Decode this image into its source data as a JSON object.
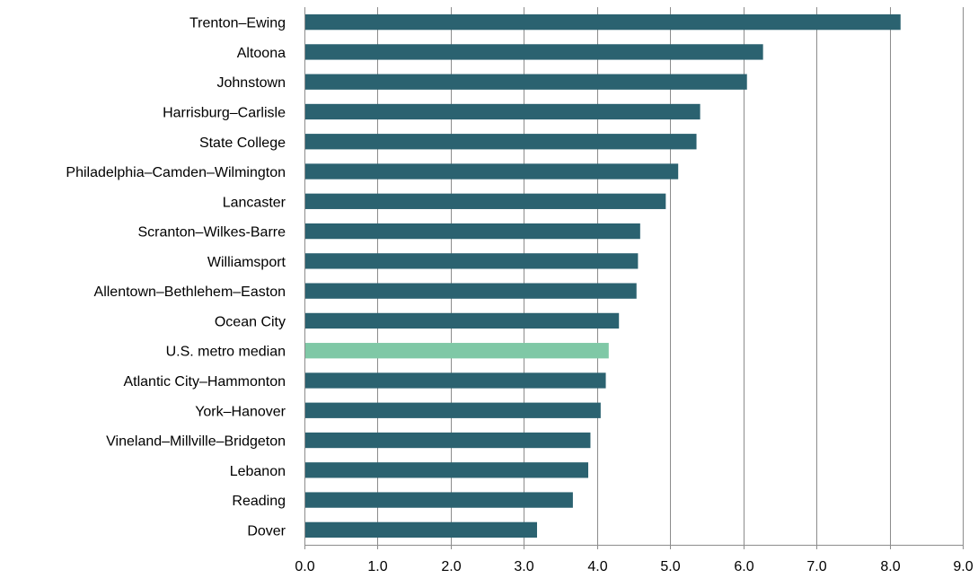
{
  "chart_data": {
    "type": "bar",
    "orientation": "horizontal",
    "title": "",
    "xlabel": "",
    "ylabel": "",
    "xlim": [
      0,
      9
    ],
    "grid": "vertical",
    "legend": "none",
    "xticks": [
      "0.0",
      "1.0",
      "2.0",
      "3.0",
      "4.0",
      "5.0",
      "6.0",
      "7.0",
      "8.0",
      "9.0"
    ],
    "categories": [
      "Trenton–Ewing",
      "Altoona",
      "Johnstown",
      "Harrisburg–Carlisle",
      "State College",
      "Philadelphia–Camden–Wilmington",
      "Lancaster",
      "Scranton–Wilkes-Barre",
      "Williamsport",
      "Allentown–Bethlehem–Easton",
      "Ocean City",
      "U.S. metro median",
      "Atlantic City–Hammonton",
      "York–Hanover",
      "Vineland–Millville–Bridgeton",
      "Lebanon",
      "Reading",
      "Dover"
    ],
    "values": [
      8.15,
      6.27,
      6.05,
      5.41,
      5.36,
      5.11,
      4.94,
      4.59,
      4.56,
      4.54,
      4.3,
      4.16,
      4.12,
      4.05,
      3.91,
      3.88,
      3.67,
      3.18
    ],
    "highlight_category": "U.S. metro median",
    "colors": {
      "bar": "#2b6270",
      "highlight": "#7fc8a6",
      "grid": "#8c8c8c"
    }
  }
}
